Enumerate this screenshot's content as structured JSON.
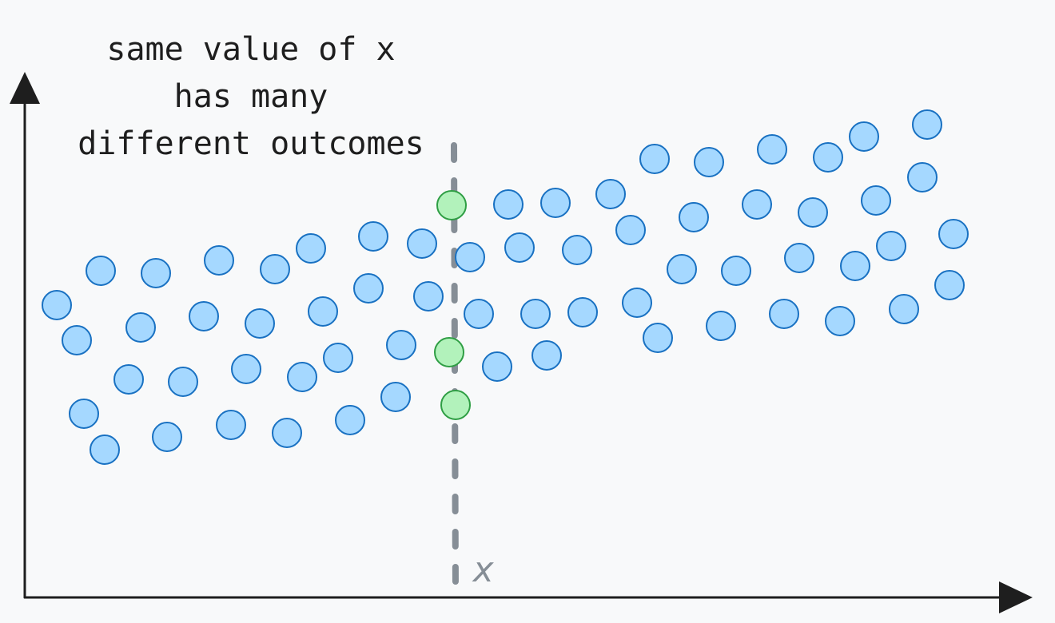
{
  "annotation": {
    "line1": "same value of x",
    "line2": "has many",
    "line3": "different outcomes"
  },
  "marker_label": "x",
  "colors": {
    "background": "#f8f9fa",
    "axis": "#1e1e1e",
    "point_fill": "#a5d8ff",
    "point_stroke": "#1971c2",
    "highlight_fill": "#b2f2bb",
    "highlight_stroke": "#2f9e44",
    "dashed_line": "#868e96"
  },
  "chart_data": {
    "type": "scatter",
    "title": "",
    "xlabel": "",
    "ylabel": "",
    "points": [
      [
        71,
        382
      ],
      [
        96,
        426
      ],
      [
        105,
        518
      ],
      [
        131,
        563
      ],
      [
        126,
        339
      ],
      [
        161,
        475
      ],
      [
        176,
        410
      ],
      [
        195,
        342
      ],
      [
        209,
        547
      ],
      [
        229,
        478
      ],
      [
        255,
        396
      ],
      [
        274,
        326
      ],
      [
        289,
        532
      ],
      [
        308,
        462
      ],
      [
        325,
        405
      ],
      [
        344,
        337
      ],
      [
        359,
        542
      ],
      [
        378,
        472
      ],
      [
        389,
        311
      ],
      [
        404,
        390
      ],
      [
        423,
        448
      ],
      [
        438,
        526
      ],
      [
        461,
        361
      ],
      [
        467,
        296
      ],
      [
        495,
        497
      ],
      [
        502,
        432
      ],
      [
        528,
        305
      ],
      [
        536,
        371
      ],
      [
        588,
        322
      ],
      [
        599,
        393
      ],
      [
        622,
        459
      ],
      [
        636,
        256
      ],
      [
        650,
        310
      ],
      [
        670,
        393
      ],
      [
        684,
        445
      ],
      [
        695,
        254
      ],
      [
        722,
        313
      ],
      [
        729,
        391
      ],
      [
        764,
        243
      ],
      [
        789,
        288
      ],
      [
        797,
        379
      ],
      [
        819,
        199
      ],
      [
        823,
        423
      ],
      [
        853,
        337
      ],
      [
        868,
        272
      ],
      [
        887,
        203
      ],
      [
        902,
        408
      ],
      [
        921,
        339
      ],
      [
        947,
        256
      ],
      [
        966,
        187
      ],
      [
        981,
        393
      ],
      [
        1000,
        323
      ],
      [
        1017,
        266
      ],
      [
        1036,
        197
      ],
      [
        1051,
        402
      ],
      [
        1070,
        333
      ],
      [
        1081,
        171
      ],
      [
        1096,
        251
      ],
      [
        1115,
        308
      ],
      [
        1131,
        387
      ],
      [
        1154,
        222
      ],
      [
        1160,
        156
      ],
      [
        1188,
        357
      ],
      [
        1193,
        293
      ]
    ],
    "highlighted_points": [
      [
        565,
        257
      ],
      [
        562,
        441
      ],
      [
        570,
        507
      ]
    ],
    "marker_x": 568
  }
}
